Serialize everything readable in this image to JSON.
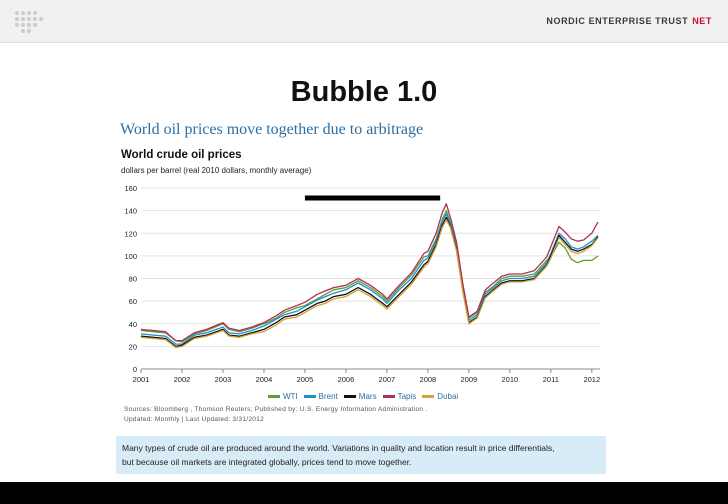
{
  "header": {
    "brand_text": "NORDIC ENTERPRISE TRUST",
    "brand_suffix": "NET",
    "logo_icon": "dot-grid-logo-icon"
  },
  "slide": {
    "title": "Bubble 1.0",
    "subhead": "World oil prices move together due to arbitrage"
  },
  "chart_data": {
    "type": "line",
    "title": "World crude oil prices",
    "subtitle": "dollars per barrel (real 2010 dollars, monthly average)",
    "xlabel": "",
    "ylabel": "",
    "ylim": [
      0,
      160
    ],
    "yticks": [
      "0",
      "20",
      "40",
      "60",
      "80",
      "100",
      "120",
      "140",
      "160"
    ],
    "xlim": [
      2001,
      2012.2
    ],
    "xticks": [
      "2001",
      "2002",
      "2003",
      "2004",
      "2005",
      "2006",
      "2007",
      "2008",
      "2009",
      "2010",
      "2011",
      "2012"
    ],
    "grid": true,
    "x": [
      2001.0,
      2001.3,
      2001.6,
      2001.85,
      2002.0,
      2002.3,
      2002.6,
      2003.0,
      2003.15,
      2003.4,
      2003.7,
      2004.0,
      2004.3,
      2004.5,
      2004.8,
      2005.0,
      2005.3,
      2005.5,
      2005.7,
      2006.0,
      2006.3,
      2006.6,
      2006.9,
      2007.0,
      2007.3,
      2007.6,
      2007.9,
      2008.0,
      2008.2,
      2008.35,
      2008.45,
      2008.55,
      2008.7,
      2008.85,
      2009.0,
      2009.2,
      2009.4,
      2009.6,
      2009.8,
      2010.0,
      2010.3,
      2010.6,
      2010.9,
      2011.0,
      2011.2,
      2011.35,
      2011.5,
      2011.65,
      2011.8,
      2012.0,
      2012.15
    ],
    "series": [
      {
        "name": "WTI",
        "color": "#5f9e2f",
        "values": [
          34,
          33,
          32,
          25,
          24,
          31,
          34,
          40,
          35,
          33,
          36,
          40,
          45,
          50,
          54,
          56,
          62,
          66,
          70,
          72,
          78,
          72,
          64,
          60,
          72,
          83,
          99,
          100,
          115,
          132,
          140,
          130,
          110,
          75,
          45,
          50,
          68,
          73,
          80,
          82,
          82,
          84,
          96,
          99,
          112,
          107,
          97,
          94,
          96,
          96,
          100
        ]
      },
      {
        "name": "Brent",
        "color": "#1f8fd0",
        "values": [
          31,
          30,
          29,
          22,
          22,
          30,
          32,
          37,
          32,
          31,
          34,
          38,
          44,
          48,
          51,
          55,
          61,
          64,
          67,
          70,
          76,
          70,
          62,
          58,
          70,
          80,
          96,
          98,
          113,
          130,
          137,
          128,
          108,
          72,
          43,
          48,
          66,
          72,
          78,
          80,
          80,
          82,
          94,
          102,
          120,
          115,
          108,
          106,
          108,
          113,
          118
        ]
      },
      {
        "name": "Mars",
        "color": "#111111",
        "values": [
          29,
          28,
          27,
          20,
          21,
          28,
          30,
          35,
          30,
          29,
          32,
          35,
          41,
          46,
          48,
          52,
          58,
          60,
          64,
          66,
          72,
          66,
          58,
          55,
          66,
          77,
          92,
          95,
          110,
          127,
          134,
          126,
          105,
          70,
          41,
          46,
          64,
          70,
          76,
          78,
          78,
          80,
          92,
          100,
          118,
          112,
          106,
          104,
          106,
          110,
          117
        ]
      },
      {
        "name": "Tapis",
        "color": "#b0305a",
        "values": [
          35,
          34,
          33,
          25,
          25,
          32,
          35,
          41,
          36,
          34,
          37,
          41,
          47,
          52,
          56,
          59,
          66,
          69,
          72,
          74,
          80,
          74,
          66,
          62,
          74,
          85,
          102,
          104,
          120,
          138,
          146,
          134,
          112,
          76,
          46,
          51,
          70,
          76,
          82,
          84,
          84,
          87,
          99,
          108,
          126,
          121,
          115,
          113,
          114,
          120,
          130
        ]
      },
      {
        "name": "Dubai",
        "color": "#d9a033",
        "values": [
          28,
          27,
          26,
          19,
          20,
          27,
          29,
          34,
          29,
          28,
          31,
          33,
          39,
          44,
          46,
          50,
          56,
          58,
          62,
          64,
          70,
          64,
          56,
          53,
          64,
          75,
          90,
          93,
          108,
          125,
          132,
          125,
          104,
          69,
          40,
          45,
          63,
          69,
          75,
          77,
          77,
          79,
          91,
          98,
          116,
          110,
          104,
          102,
          104,
          109,
          116
        ]
      }
    ],
    "annotation": "bubble-period-bar",
    "sources_line1": "Sources: Bloomberg , Thomson Reuters; Published by: U.S. Energy Information Administration .",
    "sources_line2": "Updated: Monthly | Last Updated: 3/31/2012"
  },
  "caption": {
    "line1": "Many types of crude oil are produced around the world. Variations in quality and location result in price differentials,",
    "line2": "but because oil markets are integrated globally, prices tend to move together."
  }
}
